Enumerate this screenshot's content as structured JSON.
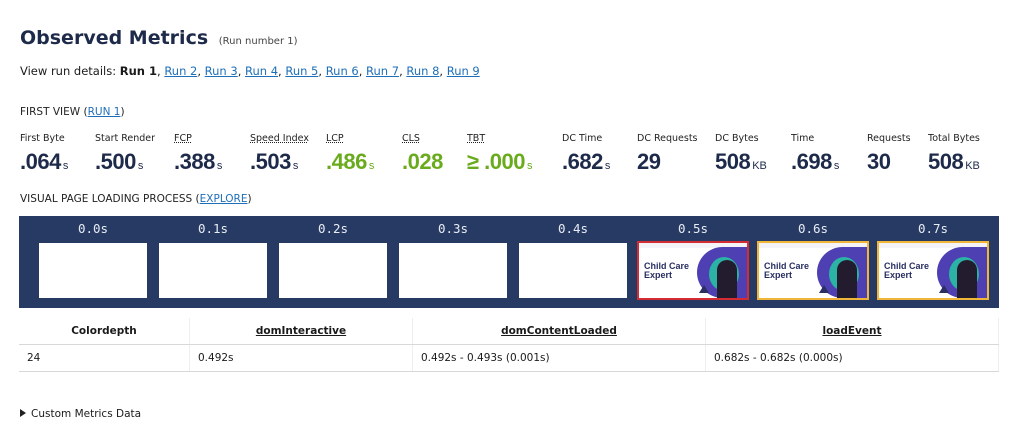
{
  "header": {
    "title": "Observed Metrics",
    "subtitle": "(Run number 1)"
  },
  "runs": {
    "prefix": "View run details:",
    "current": "Run 1",
    "links": [
      "Run 2",
      "Run 3",
      "Run 4",
      "Run 5",
      "Run 6",
      "Run 7",
      "Run 8",
      "Run 9"
    ]
  },
  "first_view": {
    "label": "FIRST VIEW",
    "link": "RUN 1"
  },
  "metrics": [
    {
      "label": "First Byte",
      "value": ".064",
      "unit": "s"
    },
    {
      "label": "Start Render",
      "value": ".500",
      "unit": "s"
    },
    {
      "label": "FCP",
      "value": ".388",
      "unit": "s"
    },
    {
      "label": "Speed Index",
      "value": ".503",
      "unit": "s"
    },
    {
      "label": "LCP",
      "value": ".486",
      "unit": "s"
    },
    {
      "label": "CLS",
      "value": ".028",
      "unit": ""
    },
    {
      "label": "TBT",
      "value": "≥ .000",
      "unit": "s"
    },
    {
      "label": "DC Time",
      "value": ".682",
      "unit": "s"
    },
    {
      "label": "DC Requests",
      "value": "29",
      "unit": ""
    },
    {
      "label": "DC Bytes",
      "value": "508",
      "unit": "KB"
    },
    {
      "label": "Time",
      "value": ".698",
      "unit": "s"
    },
    {
      "label": "Requests",
      "value": "30",
      "unit": ""
    },
    {
      "label": "Total Bytes",
      "value": "508",
      "unit": "KB"
    }
  ],
  "visual": {
    "label": "VISUAL PAGE LOADING PROCESS",
    "link": "EXPLORE"
  },
  "filmstrip": [
    {
      "time": "0.0s"
    },
    {
      "time": "0.1s"
    },
    {
      "time": "0.2s"
    },
    {
      "time": "0.3s"
    },
    {
      "time": "0.4s"
    },
    {
      "time": "0.5s",
      "caption": "Child Care Expert"
    },
    {
      "time": "0.6s",
      "caption": "Child Care Expert"
    },
    {
      "time": "0.7s",
      "caption": "Child Care Expert"
    }
  ],
  "timing_table": {
    "headers": [
      "Colordepth",
      "domInteractive",
      "domContentLoaded",
      "loadEvent"
    ],
    "row": [
      "24",
      "0.492s",
      "0.492s - 0.493s (0.001s)",
      "0.682s - 0.682s (0.000s)"
    ]
  },
  "custom_metrics": {
    "label": "Custom Metrics Data"
  },
  "colors": {
    "good": "#6aab1d",
    "navy": "#1e2a4a",
    "strip": "#273a63",
    "border_red": "#d42c33",
    "border_yellow": "#f0b63a"
  }
}
